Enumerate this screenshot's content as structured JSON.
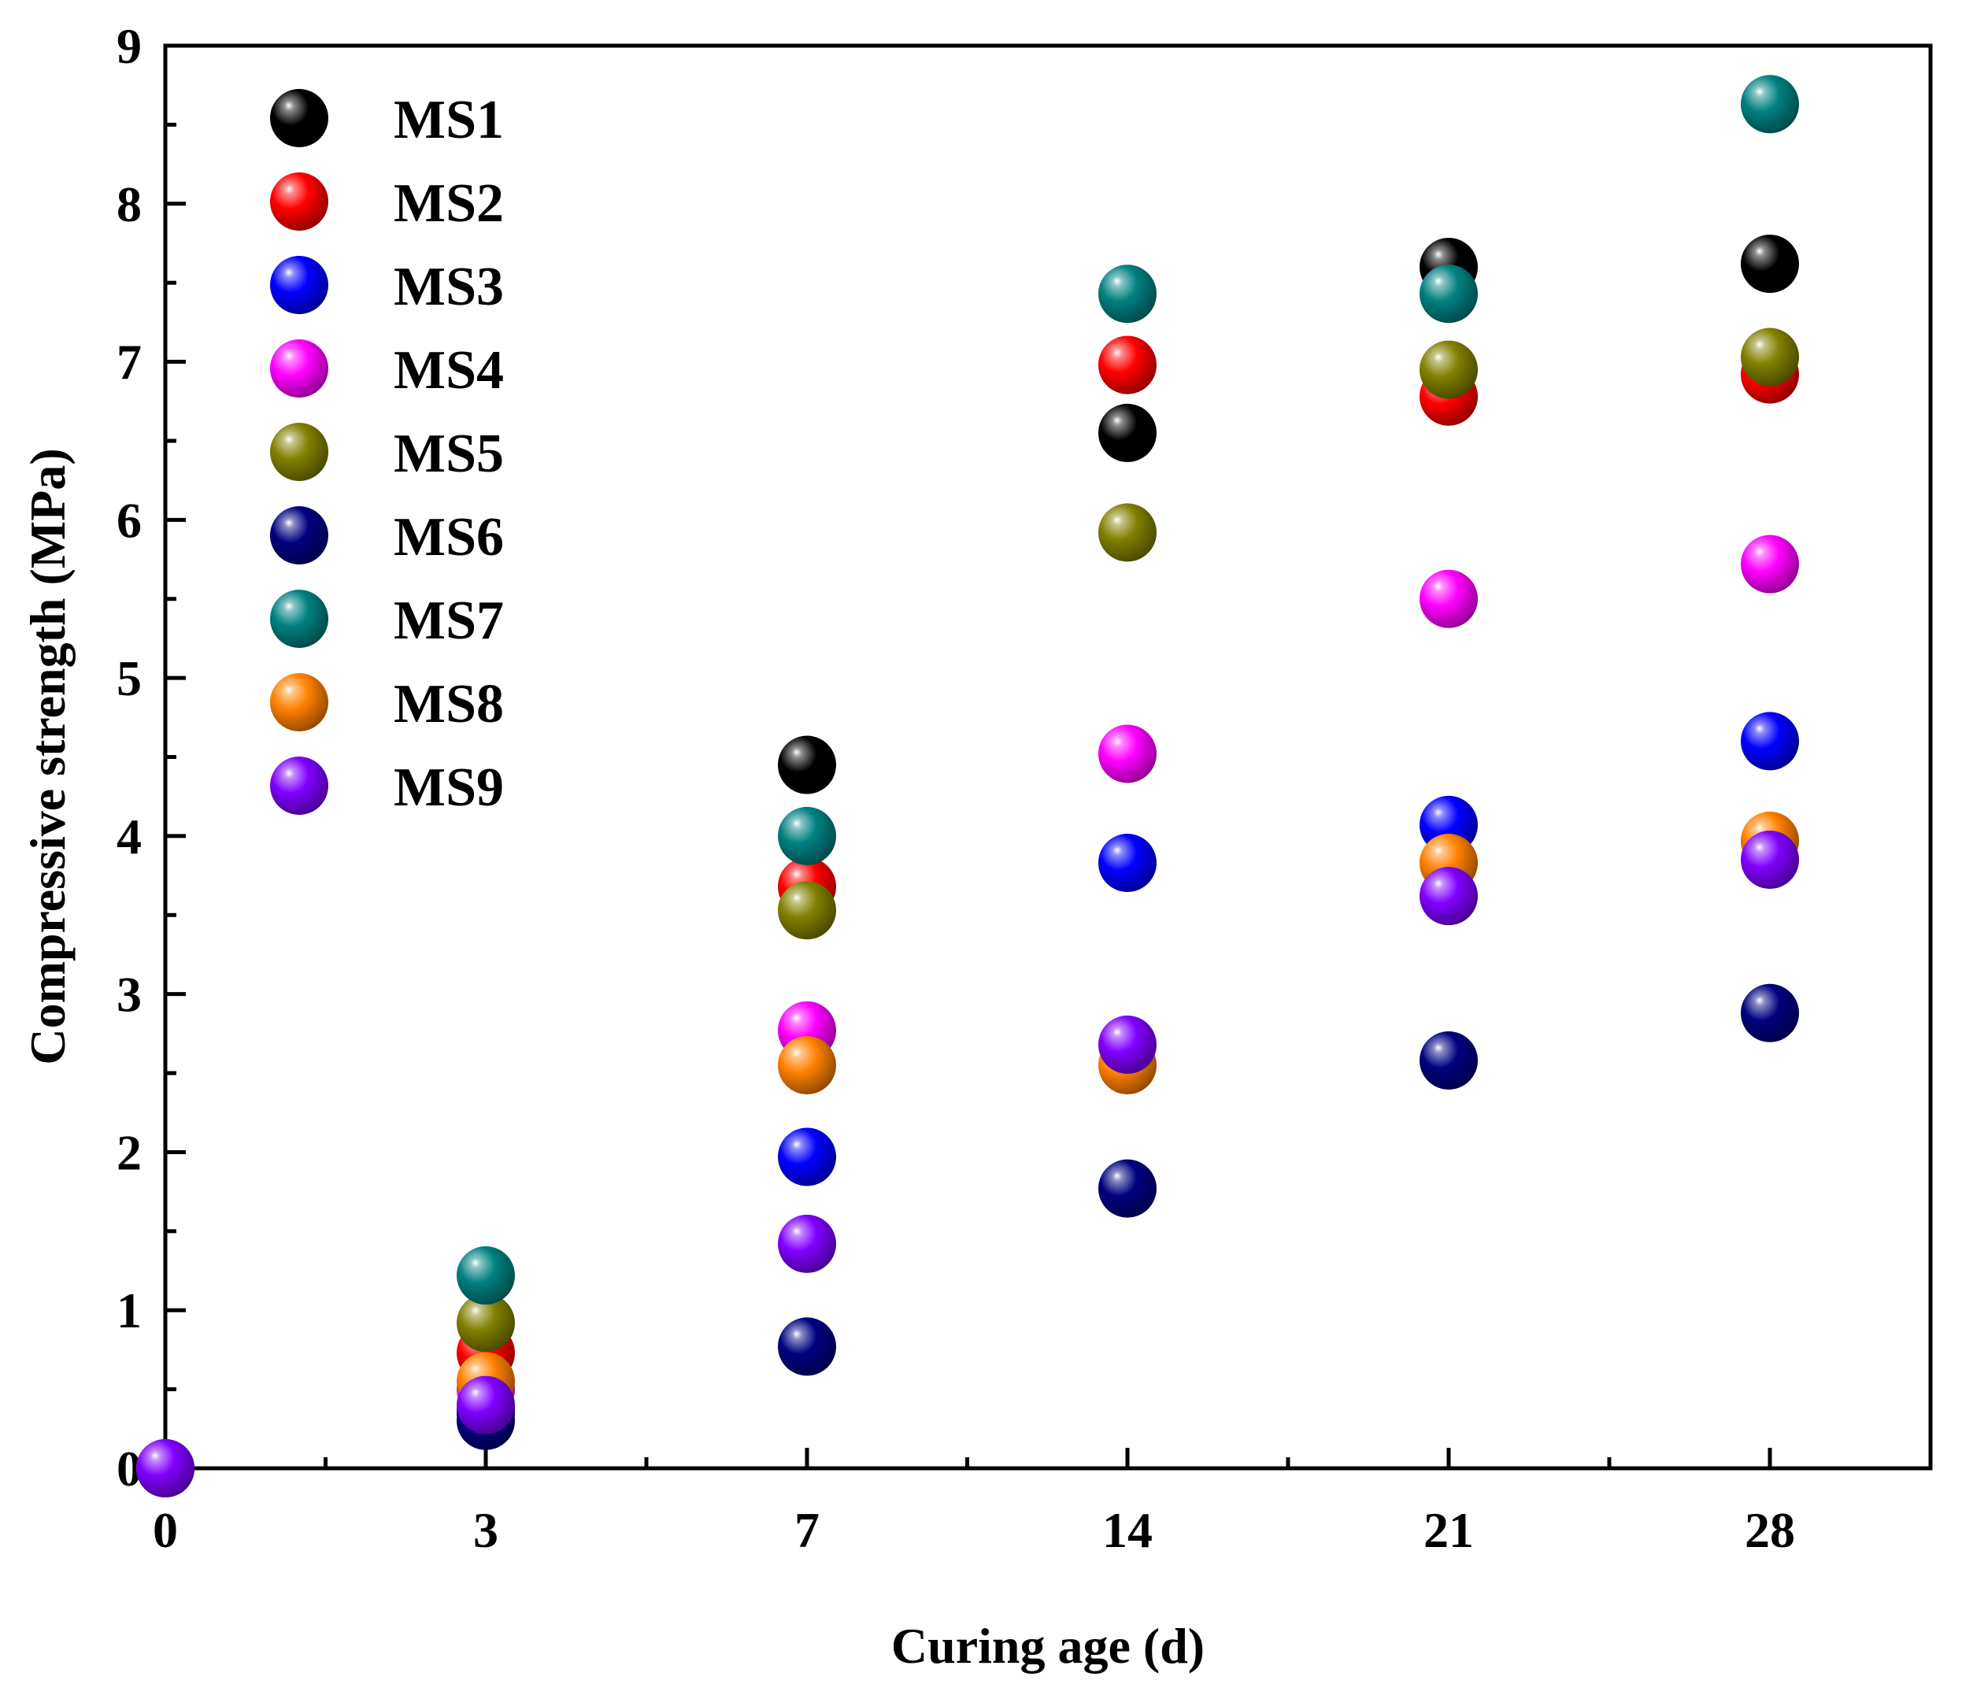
{
  "chart_data": {
    "type": "scatter",
    "title": "",
    "xlabel": "Curing age (d)",
    "ylabel": "Compressive strength (MPa)",
    "x": [
      0,
      3,
      7,
      14,
      21,
      28
    ],
    "xtick_labels": [
      "0",
      "3",
      "7",
      "14",
      "21",
      "28"
    ],
    "yticks": [
      0,
      1,
      2,
      3,
      4,
      5,
      6,
      7,
      8,
      9
    ],
    "ylim": [
      0,
      9
    ],
    "legend_position": "top-left",
    "series": [
      {
        "name": "MS1",
        "color": "#000000",
        "values": [
          0,
          0.35,
          4.45,
          6.55,
          7.6,
          7.62
        ]
      },
      {
        "name": "MS2",
        "color": "#ff0000",
        "values": [
          0,
          0.73,
          3.68,
          6.98,
          6.78,
          6.92
        ]
      },
      {
        "name": "MS3",
        "color": "#0000ff",
        "values": [
          0,
          0.38,
          1.97,
          3.83,
          4.07,
          4.6
        ]
      },
      {
        "name": "MS4",
        "color": "#ff00ff",
        "values": [
          0,
          0.5,
          2.77,
          4.52,
          5.5,
          5.72
        ]
      },
      {
        "name": "MS5",
        "color": "#808000",
        "values": [
          0,
          0.92,
          3.53,
          5.92,
          6.95,
          7.03
        ]
      },
      {
        "name": "MS6",
        "color": "#000080",
        "values": [
          0,
          0.3,
          0.77,
          1.77,
          2.58,
          2.88
        ]
      },
      {
        "name": "MS7",
        "color": "#008080",
        "values": [
          0,
          1.22,
          4.0,
          7.43,
          7.43,
          8.63
        ]
      },
      {
        "name": "MS8",
        "color": "#ff8000",
        "values": [
          0,
          0.55,
          2.55,
          2.55,
          3.83,
          3.97
        ]
      },
      {
        "name": "MS9",
        "color": "#8000ff",
        "values": [
          0,
          0.4,
          1.42,
          2.68,
          3.62,
          3.85
        ]
      }
    ]
  }
}
